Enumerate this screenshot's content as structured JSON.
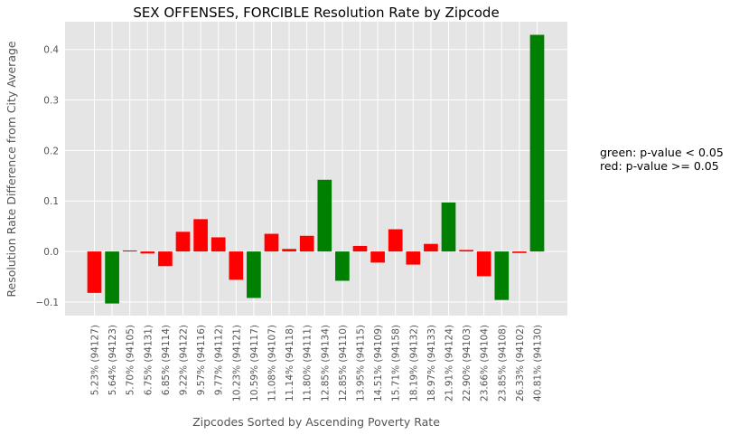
{
  "chart_data": {
    "type": "bar",
    "title": "SEX OFFENSES, FORCIBLE Resolution Rate by Zipcode",
    "xlabel": "Zipcodes Sorted by Ascending Poverty Rate",
    "ylabel": "Resolution Rate Difference from City Average",
    "ylim": [
      -0.127,
      0.455
    ],
    "yticks": [
      -0.1,
      0.0,
      0.1,
      0.2,
      0.3,
      0.4
    ],
    "ytick_labels": [
      "−0.1",
      "0.0",
      "0.1",
      "0.2",
      "0.3",
      "0.4"
    ],
    "grid": true,
    "background": "#e5e5e5",
    "categories": [
      "5.23% (94127)",
      "5.64% (94123)",
      "5.70% (94105)",
      "6.75% (94131)",
      "6.85% (94114)",
      "9.22% (94122)",
      "9.57% (94116)",
      "9.77% (94112)",
      "10.23% (94121)",
      "10.59% (94117)",
      "11.08% (94107)",
      "11.14% (94118)",
      "11.80% (94111)",
      "12.85% (94134)",
      "12.85% (94110)",
      "13.95% (94115)",
      "14.51% (94109)",
      "15.71% (94158)",
      "18.19% (94132)",
      "18.97% (94133)",
      "21.91% (94124)",
      "22.90% (94103)",
      "23.66% (94104)",
      "23.85% (94108)",
      "26.33% (94102)",
      "40.81% (94130)"
    ],
    "values": [
      -0.082,
      -0.103,
      0.002,
      -0.004,
      -0.029,
      0.039,
      0.064,
      0.028,
      -0.056,
      -0.092,
      0.035,
      0.005,
      0.031,
      0.142,
      -0.058,
      0.011,
      -0.022,
      0.044,
      -0.026,
      0.015,
      0.097,
      0.003,
      -0.049,
      -0.096,
      -0.003,
      0.429
    ],
    "significant": [
      false,
      true,
      false,
      false,
      false,
      false,
      false,
      false,
      false,
      true,
      false,
      false,
      false,
      true,
      true,
      false,
      false,
      false,
      false,
      false,
      true,
      false,
      false,
      true,
      false,
      true
    ],
    "colors": {
      "significant": "#008000",
      "not_significant": "#ff0000"
    },
    "annotation": [
      "green: p-value < 0.05",
      "red: p-value >= 0.05"
    ]
  }
}
